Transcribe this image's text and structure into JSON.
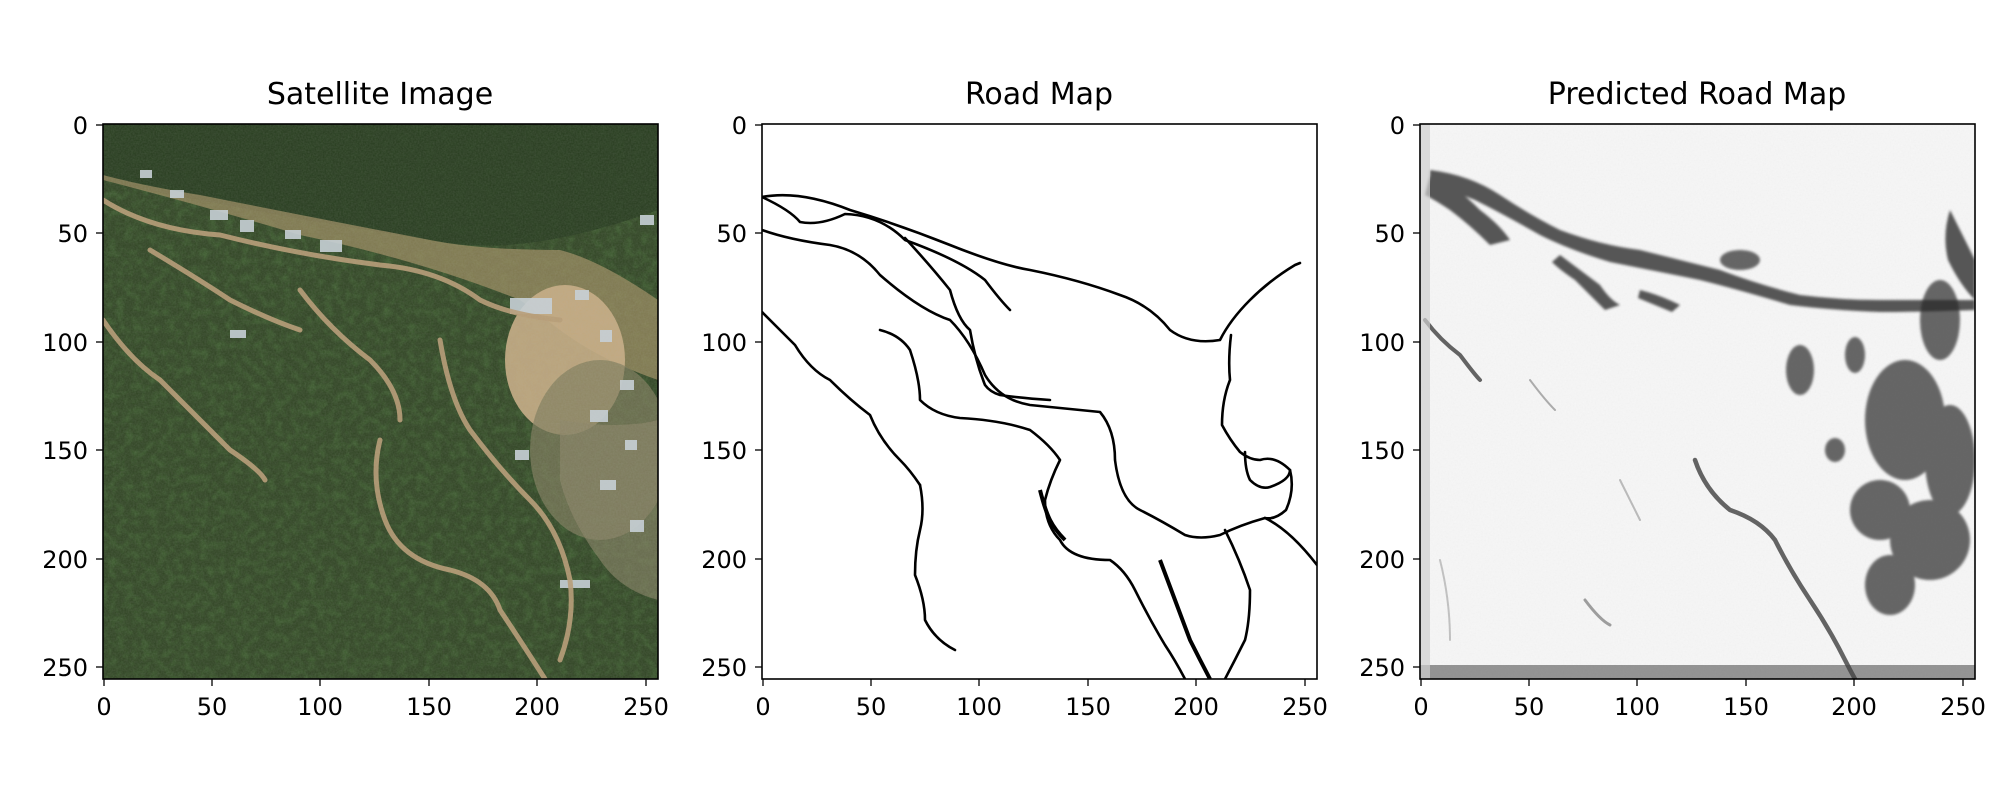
{
  "figure": {
    "panels": [
      {
        "id": "satellite",
        "title": "Satellite Image",
        "x_ticks": [
          "0",
          "50",
          "100",
          "150",
          "200",
          "250"
        ],
        "y_ticks": [
          "0",
          "50",
          "100",
          "150",
          "200",
          "250"
        ],
        "x_range": [
          0,
          256
        ],
        "y_range": [
          0,
          256
        ],
        "y_inverted": true
      },
      {
        "id": "road-map",
        "title": "Road Map",
        "x_ticks": [
          "0",
          "50",
          "100",
          "150",
          "200",
          "250"
        ],
        "y_ticks": [
          "0",
          "50",
          "100",
          "150",
          "200",
          "250"
        ],
        "x_range": [
          0,
          256
        ],
        "y_range": [
          0,
          256
        ],
        "y_inverted": true
      },
      {
        "id": "predicted-road-map",
        "title": "Predicted Road Map",
        "x_ticks": [
          "0",
          "50",
          "100",
          "150",
          "200",
          "250"
        ],
        "y_ticks": [
          "0",
          "50",
          "100",
          "150",
          "200",
          "250"
        ],
        "x_range": [
          0,
          256
        ],
        "y_range": [
          0,
          256
        ],
        "y_inverted": true
      }
    ]
  }
}
